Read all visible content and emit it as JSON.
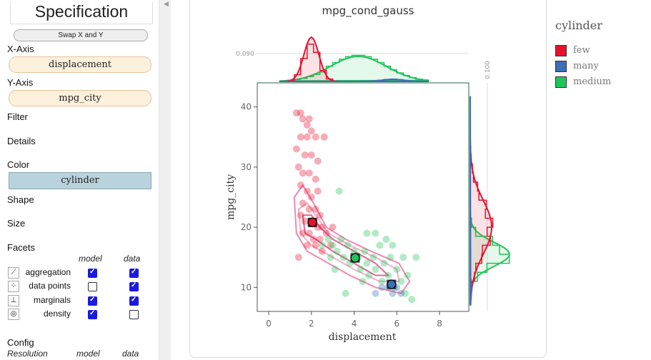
{
  "sidebar": {
    "title": "Specification",
    "swap_label": "Swap X and Y",
    "x_axis_label": "X-Axis",
    "x_axis_field": "displacement",
    "y_axis_label": "Y-Axis",
    "y_axis_field": "mpg_city",
    "filter_label": "Filter",
    "details_label": "Details",
    "color_label": "Color",
    "color_field": "cylinder",
    "shape_label": "Shape",
    "size_label": "Size",
    "facets_label": "Facets",
    "col_model": "model",
    "col_data": "data",
    "facets": [
      {
        "name": "aggregation",
        "icon": "aggregation-icon",
        "model": true,
        "data": true
      },
      {
        "name": "data points",
        "icon": "scatter-icon",
        "model": false,
        "data": true
      },
      {
        "name": "marginals",
        "icon": "marginals-icon",
        "model": true,
        "data": true
      },
      {
        "name": "density",
        "icon": "density-icon",
        "model": true,
        "data": false
      }
    ],
    "config_label": "Config",
    "resolution_label": "Resolution",
    "res_model": "model",
    "res_data": "data"
  },
  "legend": {
    "title": "cylinder",
    "items": [
      {
        "label": "few",
        "color": "#e8112d"
      },
      {
        "label": "many",
        "color": "#3b6fb6"
      },
      {
        "label": "medium",
        "color": "#21c45a"
      }
    ]
  },
  "chart_data": {
    "type": "scatter",
    "title": "mpg_cond_gauss",
    "xlabel": "displacement",
    "ylabel": "mpg_city",
    "xlim": [
      -0.3,
      8.7
    ],
    "ylim": [
      6,
      44
    ],
    "xticks": [
      0,
      2,
      4,
      6,
      8
    ],
    "yticks": [
      10,
      20,
      30,
      40
    ],
    "top_marginal_tick": "0.090",
    "right_marginal_tick": "0.100",
    "series": [
      {
        "name": "few",
        "color": "#e8112d",
        "points": [
          [
            1.3,
            39
          ],
          [
            1.5,
            39
          ],
          [
            1.6,
            38
          ],
          [
            1.8,
            37
          ],
          [
            1.9,
            38
          ],
          [
            2.0,
            36
          ],
          [
            1.5,
            35
          ],
          [
            1.8,
            35
          ],
          [
            2.2,
            35
          ],
          [
            2.6,
            35
          ],
          [
            1.3,
            33
          ],
          [
            1.7,
            32
          ],
          [
            2.0,
            32
          ],
          [
            2.3,
            31
          ],
          [
            1.4,
            30
          ],
          [
            1.6,
            29
          ],
          [
            1.9,
            29
          ],
          [
            2.2,
            28
          ],
          [
            1.5,
            27
          ],
          [
            1.8,
            26
          ],
          [
            2.0,
            25
          ],
          [
            2.3,
            26
          ],
          [
            1.6,
            24
          ],
          [
            1.9,
            23
          ],
          [
            2.2,
            23
          ],
          [
            2.4,
            22
          ],
          [
            1.5,
            22
          ],
          [
            1.7,
            21
          ],
          [
            2.0,
            21
          ],
          [
            2.3,
            20
          ],
          [
            2.5,
            20
          ],
          [
            1.6,
            19
          ],
          [
            1.9,
            19
          ],
          [
            2.1,
            18
          ],
          [
            2.4,
            18
          ],
          [
            2.7,
            19
          ],
          [
            1.8,
            17
          ],
          [
            2.2,
            17
          ],
          [
            2.5,
            16
          ],
          [
            2.9,
            17
          ],
          [
            1.4,
            15
          ],
          [
            3.0,
            20
          ]
        ],
        "aggregate": [
          2.05,
          20.8
        ]
      },
      {
        "name": "medium",
        "color": "#21c45a",
        "points": [
          [
            2.5,
            17
          ],
          [
            2.8,
            18
          ],
          [
            3.0,
            17
          ],
          [
            3.2,
            16
          ],
          [
            3.4,
            18
          ],
          [
            3.5,
            15
          ],
          [
            3.7,
            17
          ],
          [
            3.8,
            14
          ],
          [
            4.0,
            16
          ],
          [
            4.2,
            15
          ],
          [
            4.3,
            13
          ],
          [
            4.5,
            16
          ],
          [
            4.6,
            14
          ],
          [
            4.7,
            12
          ],
          [
            4.9,
            15
          ],
          [
            5.0,
            13
          ],
          [
            5.2,
            17
          ],
          [
            5.3,
            11
          ],
          [
            5.4,
            14
          ],
          [
            5.6,
            12
          ],
          [
            5.7,
            15
          ],
          [
            5.9,
            10
          ],
          [
            6.0,
            13
          ],
          [
            6.2,
            11
          ],
          [
            6.4,
            9
          ],
          [
            6.5,
            12
          ],
          [
            6.7,
            8
          ],
          [
            3.3,
            26
          ],
          [
            4.6,
            19
          ],
          [
            5.0,
            19
          ],
          [
            5.5,
            18
          ],
          [
            6.9,
            15
          ],
          [
            3.1,
            13
          ],
          [
            3.6,
            9
          ],
          [
            4.4,
            11
          ],
          [
            5.8,
            17
          ],
          [
            6.3,
            15
          ],
          [
            2.9,
            15
          ]
        ],
        "aggregate": [
          4.05,
          14.9
        ]
      },
      {
        "name": "many",
        "color": "#3b6fb6",
        "points": [
          [
            5.0,
            9
          ],
          [
            5.3,
            10
          ],
          [
            5.6,
            10
          ],
          [
            5.8,
            9
          ],
          [
            6.0,
            10
          ],
          [
            6.2,
            9
          ]
        ],
        "aggregate": [
          5.75,
          10.5
        ]
      }
    ]
  }
}
